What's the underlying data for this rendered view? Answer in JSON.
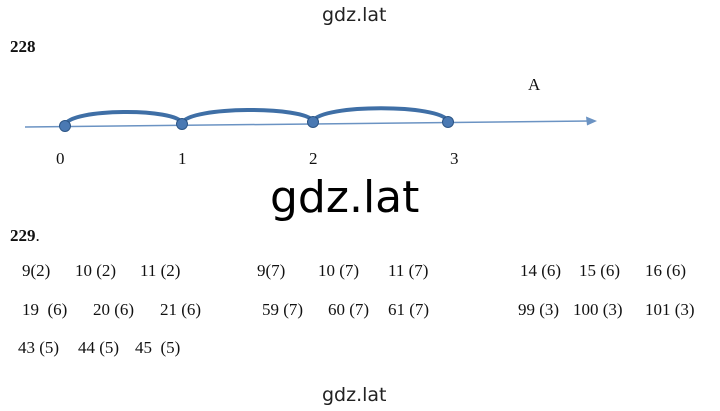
{
  "watermarks": [
    "gdz.lat",
    "gdz.lat",
    "gdz.lat"
  ],
  "problem_228": {
    "number": "228",
    "point_labels": [
      "0",
      "1",
      "2",
      "3"
    ],
    "ray_label": "A"
  },
  "problem_229": {
    "number": "229",
    "suffix": ".",
    "rows": [
      [
        "9(2)",
        "10 (2)",
        "11 (2)",
        "9(7)",
        "10 (7)",
        "11 (7)",
        "14 (6)",
        "15 (6)",
        "16 (6)"
      ],
      [
        "19  (6)",
        "20 (6)",
        "21 (6)",
        "59 (7)",
        "60 (7)",
        "61 (7)",
        "99 (3)",
        "100 (3)",
        "101 (3)"
      ],
      [
        "43 (5)",
        "44 (5)",
        "45  (5)"
      ]
    ]
  }
}
